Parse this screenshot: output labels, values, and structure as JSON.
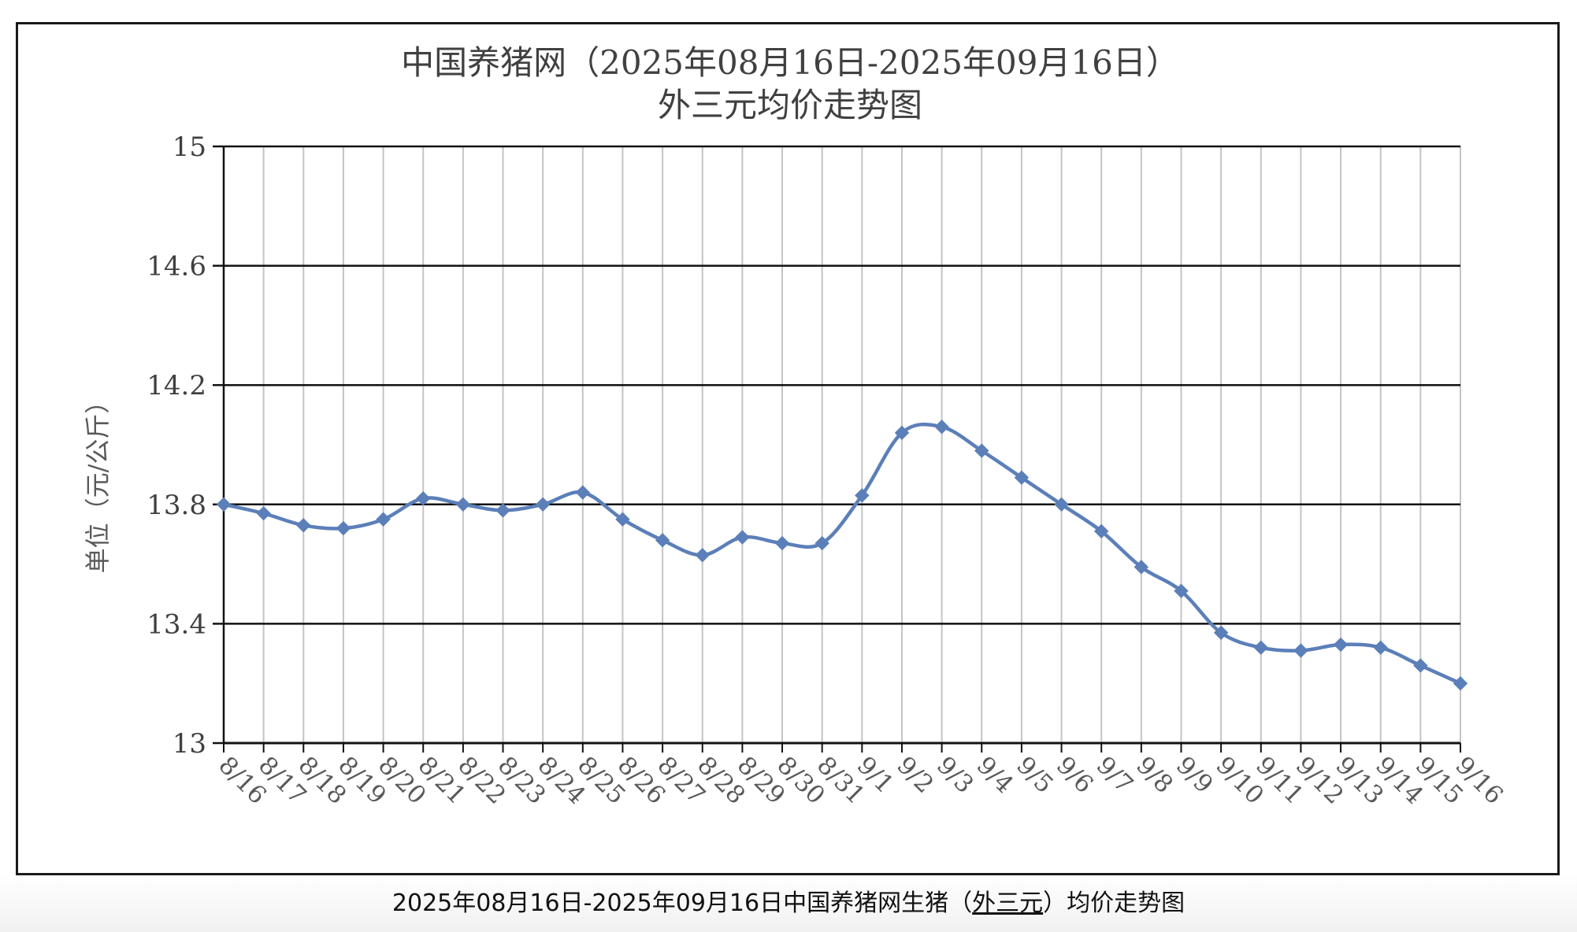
{
  "caption": {
    "before": "2025年08月16日-2025年09月16日中国养猪网生猪（",
    "link": "外三元",
    "after": "）均价走势图"
  },
  "chart_data": {
    "type": "line",
    "title_line1": "中国养猪网（2025年08月16日-2025年09月16日）",
    "title_line2": "外三元均价走势图",
    "ylabel": "单位（元/公斤）",
    "xlabel": "",
    "ylim": [
      13,
      15
    ],
    "yticks": [
      "13",
      "13.4",
      "13.8",
      "14.2",
      "14.6",
      "15"
    ],
    "ytick_values": [
      13,
      13.4,
      13.8,
      14.2,
      14.6,
      15
    ],
    "grid": true,
    "legend": "none",
    "line_color": "#5b7fb9",
    "categories": [
      "8/16",
      "8/17",
      "8/18",
      "8/19",
      "8/20",
      "8/21",
      "8/22",
      "8/23",
      "8/24",
      "8/25",
      "8/26",
      "8/27",
      "8/28",
      "8/29",
      "8/30",
      "8/31",
      "9/1",
      "9/2",
      "9/3",
      "9/4",
      "9/5",
      "9/6",
      "9/7",
      "9/8",
      "9/9",
      "9/10",
      "9/11",
      "9/12",
      "9/13",
      "9/14",
      "9/15",
      "9/16"
    ],
    "values": [
      13.8,
      13.77,
      13.73,
      13.72,
      13.75,
      13.82,
      13.8,
      13.78,
      13.8,
      13.84,
      13.75,
      13.68,
      13.63,
      13.69,
      13.67,
      13.67,
      13.83,
      14.04,
      14.06,
      13.98,
      13.89,
      13.8,
      13.71,
      13.59,
      13.51,
      13.37,
      13.32,
      13.31,
      13.33,
      13.32,
      13.26,
      13.2
    ]
  }
}
